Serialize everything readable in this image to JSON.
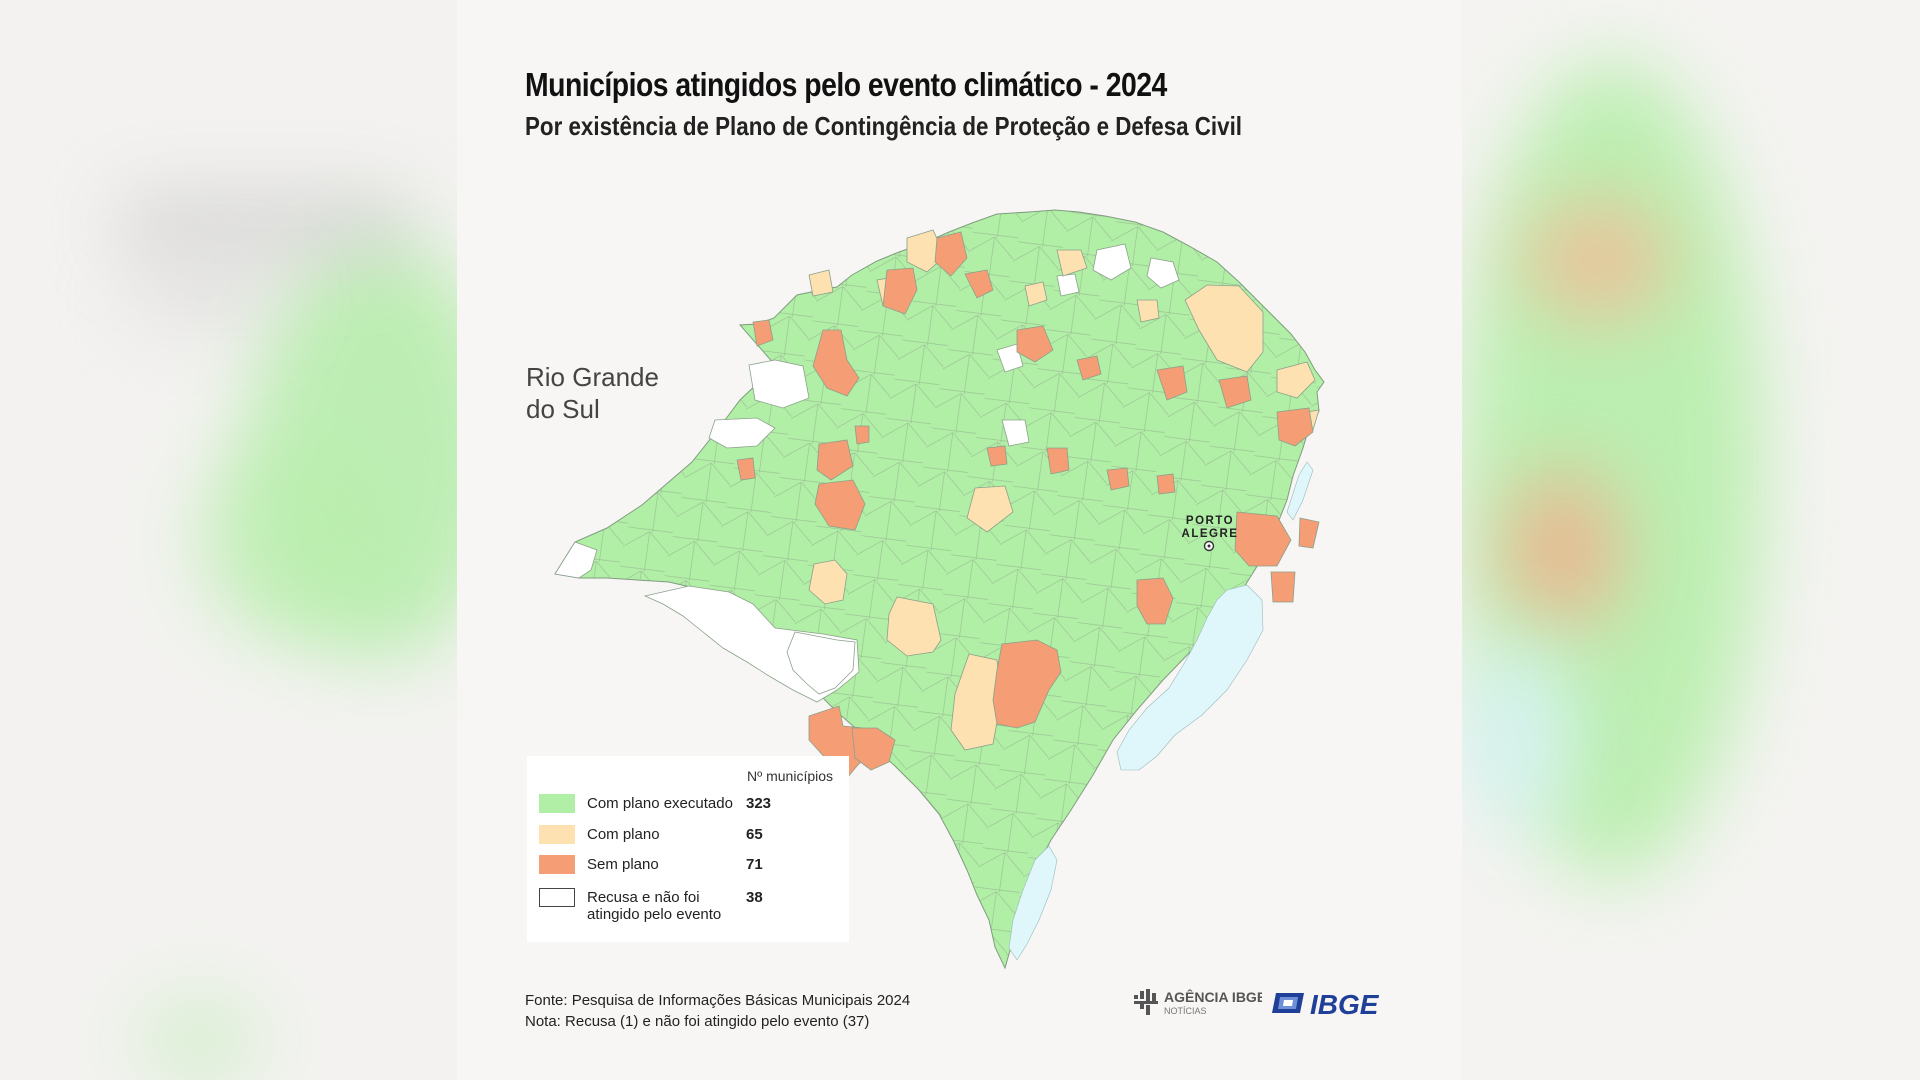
{
  "header": {
    "title": "Municípios atingidos pelo evento climático - 2024",
    "subtitle": "Por existência de Plano de Contingência de Proteção e Defesa Civil"
  },
  "map": {
    "region_label_line1": "Rio Grande",
    "region_label_line2": "do Sul",
    "city_label_line1": "PORTO",
    "city_label_line2": "ALEGRE"
  },
  "legend": {
    "header": "Nº municípios",
    "items": [
      {
        "label": "Com plano executado",
        "count": "323",
        "color": "#b2efa6"
      },
      {
        "label": "Com plano",
        "count": "65",
        "color": "#fde1b1"
      },
      {
        "label": "Sem plano",
        "count": "71",
        "color": "#f59d75"
      },
      {
        "label_line1": "Recusa e não foi",
        "label_line2": "atingido pelo evento",
        "count": "38",
        "color": "#ffffff"
      }
    ]
  },
  "footer": {
    "source": "Fonte: Pesquisa de Informações Básicas Municipais 2024",
    "note": "Nota: Recusa (1) e não foi atingido pelo evento (37)"
  },
  "logos": {
    "agencia_line1": "AGÊNCIA IBGE",
    "agencia_line2": "NOTÍCIAS",
    "ibge": "IBGE"
  },
  "colors": {
    "water": "#dff6fb",
    "boundary": "#8aa18a",
    "ibge_blue": "#1f3f99"
  }
}
